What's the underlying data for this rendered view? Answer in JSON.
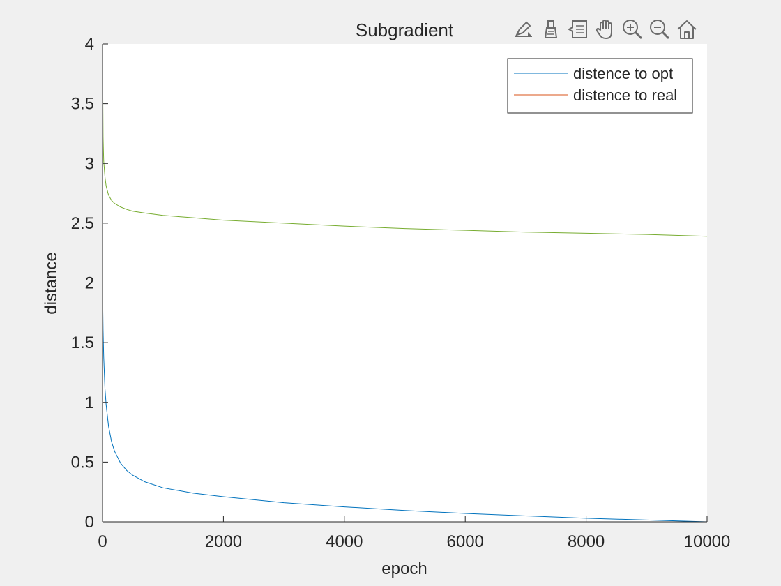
{
  "window": {
    "background": "#f0f0f0"
  },
  "toolbar": {
    "icons": [
      {
        "name": "edit-plot-icon"
      },
      {
        "name": "brush-icon"
      },
      {
        "name": "data-tips-icon"
      },
      {
        "name": "pan-hand-icon"
      },
      {
        "name": "zoom-in-icon"
      },
      {
        "name": "zoom-out-icon"
      },
      {
        "name": "home-icon"
      }
    ],
    "icon_color": "#6b6b6b"
  },
  "chart_data": {
    "type": "line",
    "title": "Subgradient",
    "xlabel": "epoch",
    "ylabel": "distance",
    "xlim": [
      0,
      10000
    ],
    "ylim": [
      0,
      4
    ],
    "xticks": [
      0,
      2000,
      4000,
      6000,
      8000,
      10000
    ],
    "xtick_labels": [
      "0",
      "2000",
      "4000",
      "6000",
      "8000",
      "10000"
    ],
    "yticks": [
      0,
      0.5,
      1,
      1.5,
      2,
      2.5,
      3,
      3.5,
      4
    ],
    "ytick_labels": [
      "0",
      "0.5",
      "1",
      "1.5",
      "2",
      "2.5",
      "3",
      "3.5",
      "4"
    ],
    "grid": false,
    "legend_position": "top-right",
    "series": [
      {
        "name": "distence to opt",
        "color": "#0072bd",
        "x": [
          0,
          10,
          20,
          40,
          60,
          100,
          150,
          200,
          300,
          400,
          500,
          700,
          1000,
          1500,
          2000,
          3000,
          4000,
          5000,
          6000,
          7000,
          8000,
          9000,
          10000
        ],
        "y": [
          2.0,
          1.6,
          1.38,
          1.12,
          0.98,
          0.8,
          0.67,
          0.59,
          0.49,
          0.43,
          0.39,
          0.335,
          0.285,
          0.24,
          0.21,
          0.16,
          0.125,
          0.095,
          0.07,
          0.05,
          0.03,
          0.015,
          0.0
        ]
      },
      {
        "name": "distence to real",
        "color": "#d95319",
        "x": [
          0,
          10000
        ],
        "y": [
          0.0,
          0.0
        ]
      },
      {
        "name": "",
        "color": "#77ac30",
        "x": [
          0,
          10,
          20,
          40,
          60,
          100,
          150,
          200,
          300,
          400,
          500,
          700,
          1000,
          1500,
          2000,
          3000,
          4000,
          5000,
          6000,
          7000,
          8000,
          9000,
          10000
        ],
        "y": [
          4.0,
          3.22,
          3.02,
          2.89,
          2.81,
          2.735,
          2.69,
          2.665,
          2.635,
          2.615,
          2.6,
          2.585,
          2.565,
          2.545,
          2.525,
          2.5,
          2.475,
          2.455,
          2.44,
          2.425,
          2.415,
          2.405,
          2.39
        ]
      }
    ]
  }
}
